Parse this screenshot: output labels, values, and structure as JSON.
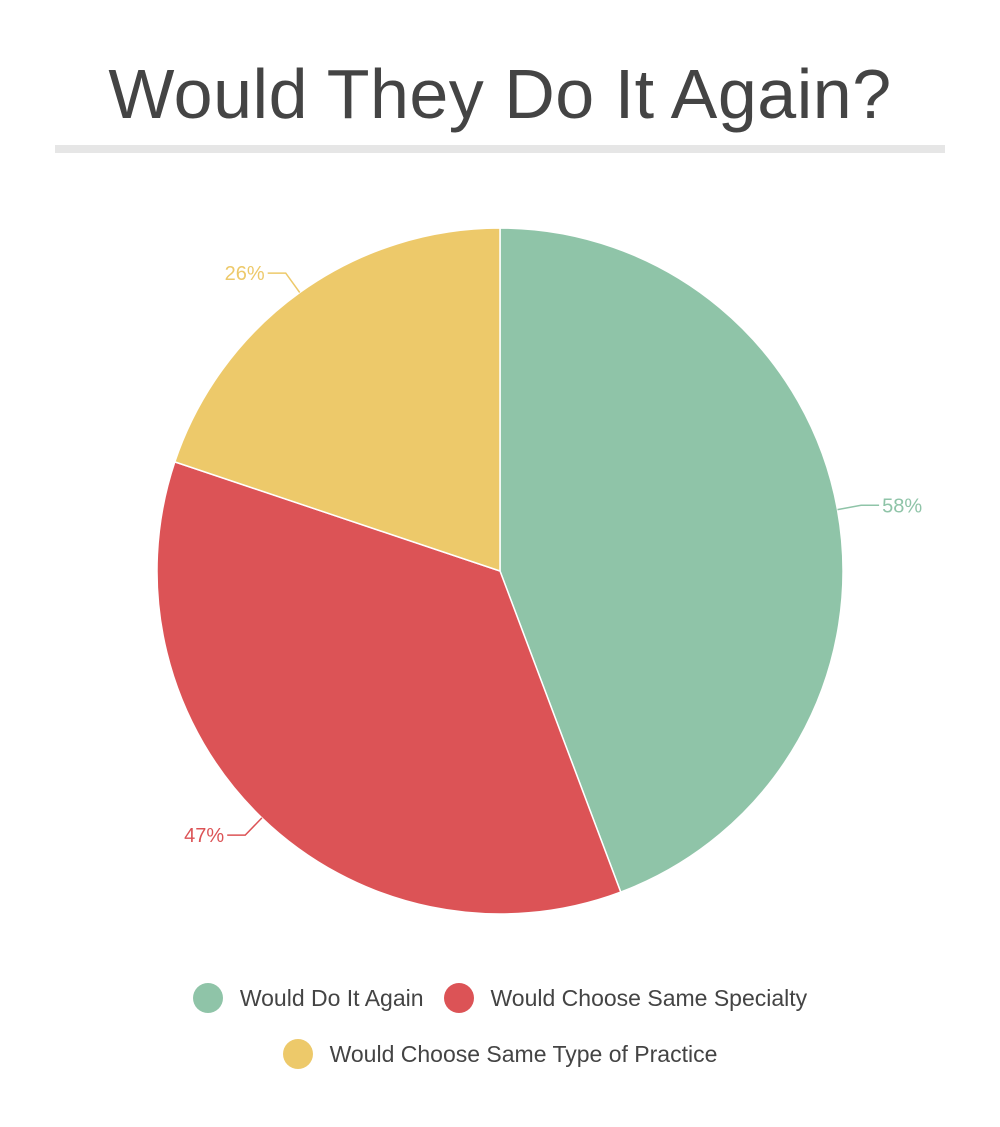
{
  "chart_data": {
    "type": "pie",
    "title": "Would They Do It Again?",
    "categories": [
      "Would Do It Again",
      "Would Choose Same Specialty",
      "Would Choose Same Type of Practice"
    ],
    "values": [
      58,
      47,
      26
    ],
    "data_labels": [
      "58%",
      "47%",
      "26%"
    ],
    "colors": [
      "#8fc4a8",
      "#dc5356",
      "#edc96a"
    ],
    "legend_position": "bottom"
  },
  "colors": {
    "title_text": "#444444",
    "legend_text": "#444444",
    "rule": "#e6e6e6",
    "slice_border": "#ffffff"
  }
}
